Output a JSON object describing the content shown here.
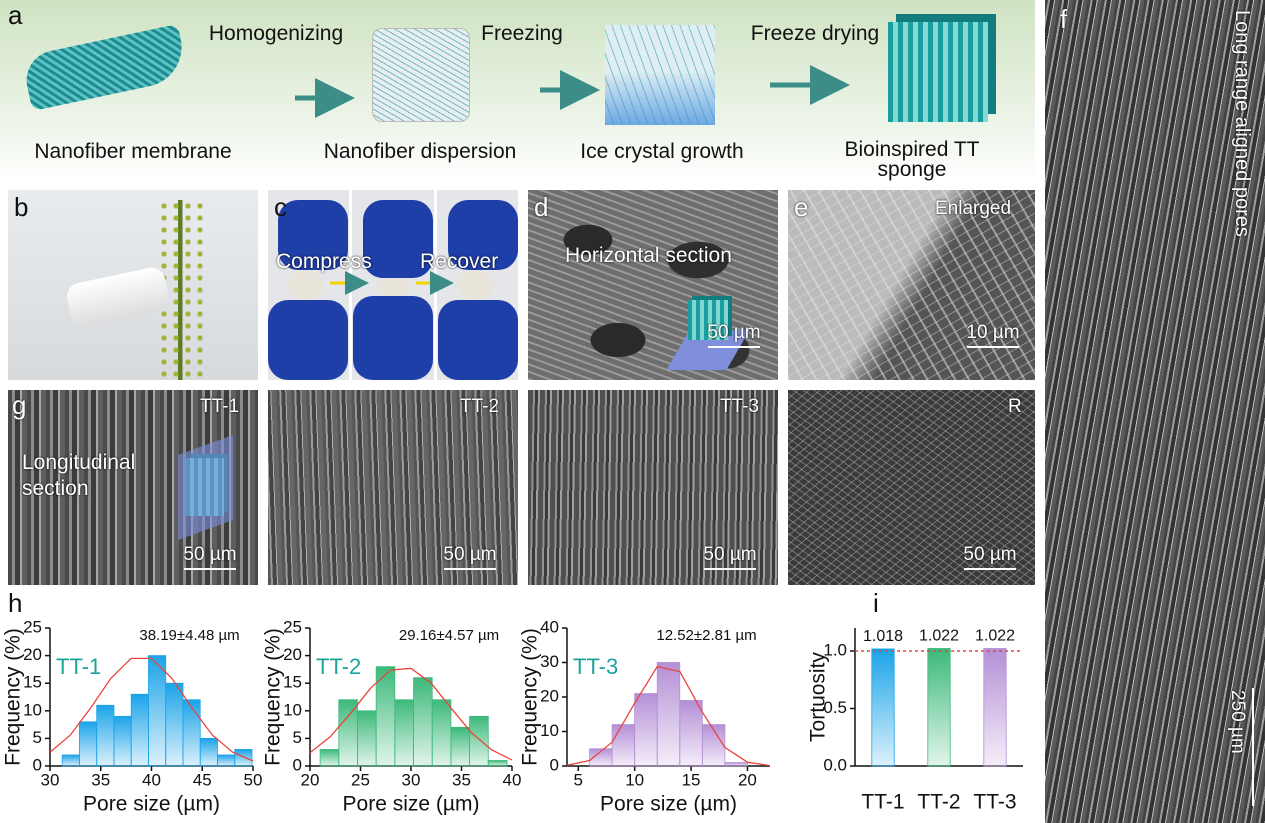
{
  "a": {
    "label": "a",
    "steps": [
      "Homogenizing",
      "Freezing",
      "Freeze drying"
    ],
    "stages": [
      "Nanofiber membrane",
      "Nanofiber dispersion",
      "Ice crystal growth",
      "Bioinspired TT sponge"
    ]
  },
  "b": {
    "label": "b"
  },
  "c": {
    "label": "c",
    "texts": [
      "Compress",
      "Recover"
    ]
  },
  "d": {
    "label": "d",
    "title": "Horizontal section",
    "scale": "50 µm"
  },
  "e": {
    "label": "e",
    "title": "Enlarged",
    "scale": "10 µm"
  },
  "f": {
    "label": "f",
    "title": "Long range aligned pores",
    "scale": "250 µm"
  },
  "g": {
    "label": "g",
    "note": "Longitudinal section",
    "panels": [
      {
        "title": "TT-1",
        "scale": "50 µm"
      },
      {
        "title": "TT-2",
        "scale": "50 µm"
      },
      {
        "title": "TT-3",
        "scale": "50 µm"
      },
      {
        "title": "R",
        "scale": "50 µm"
      }
    ]
  },
  "h": {
    "label": "h"
  },
  "i": {
    "label": "i"
  },
  "chart_data": [
    {
      "type": "histogram",
      "name": "TT-1",
      "annotation": "38.19±4.48 µm",
      "xlabel": "Pore size (µm)",
      "ylabel": "Frequency (%)",
      "bins": [
        31.2,
        32.9,
        34.6,
        36.3,
        38.0,
        39.7,
        41.4,
        43.1,
        44.8,
        46.5,
        48.2,
        49.9
      ],
      "values": [
        2,
        8,
        11,
        9,
        13,
        20,
        15,
        12,
        5,
        2,
        3
      ],
      "xlim": [
        30,
        50
      ],
      "xticks": [
        30,
        35,
        40,
        45,
        50
      ],
      "ylim": [
        0,
        25
      ],
      "yticks": [
        0,
        5,
        10,
        15,
        20,
        25
      ],
      "color": "#1aa3e8",
      "fit": {
        "color": "#e8453c",
        "x": [
          30,
          32,
          34,
          36,
          38,
          40,
          42,
          44,
          46,
          48,
          50
        ],
        "y": [
          2.5,
          5.6,
          10.5,
          15.9,
          19.5,
          19.5,
          15.9,
          10.5,
          5.6,
          2.5,
          0.9
        ]
      }
    },
    {
      "type": "histogram",
      "name": "TT-2",
      "annotation": "29.16±4.57 µm",
      "xlabel": "Pore size (µm)",
      "ylabel": "Frequency (%)",
      "bins": [
        21.0,
        22.85,
        24.7,
        26.55,
        28.4,
        30.25,
        32.1,
        33.95,
        35.8,
        37.65,
        39.5
      ],
      "values": [
        3,
        12,
        10,
        18,
        12,
        16,
        12,
        7,
        9,
        1
      ],
      "xlim": [
        20,
        40
      ],
      "xticks": [
        20,
        25,
        30,
        35,
        40
      ],
      "ylim": [
        0,
        25
      ],
      "yticks": [
        0,
        5,
        10,
        15,
        20,
        25
      ],
      "color": "#3cb97a",
      "fit": {
        "color": "#e8453c",
        "x": [
          20,
          22,
          24,
          26,
          28,
          30,
          32,
          34,
          36,
          38,
          40
        ],
        "y": [
          2.4,
          5.3,
          9.5,
          14.1,
          17.4,
          17.7,
          15,
          10.4,
          6,
          2.9,
          1.1
        ]
      }
    },
    {
      "type": "histogram",
      "name": "TT-3",
      "annotation": "12.52±2.81 µm",
      "xlabel": "Pore size (µm)",
      "ylabel": "Frequency (%)",
      "bins": [
        6,
        8,
        10,
        12,
        14,
        16,
        18,
        20
      ],
      "values": [
        5,
        12,
        21,
        30,
        19,
        12,
        1
      ],
      "xlim": [
        4,
        22
      ],
      "xticks": [
        5,
        10,
        15,
        20
      ],
      "ylim": [
        0,
        40
      ],
      "yticks": [
        0,
        10,
        20,
        30,
        40
      ],
      "color": "#b48fd6",
      "fit": {
        "color": "#e8453c",
        "x": [
          4,
          6,
          8,
          10,
          12,
          14,
          16,
          18,
          20,
          22
        ],
        "y": [
          0.2,
          1.6,
          6.9,
          18.2,
          28.8,
          27.4,
          15.6,
          5.4,
          1.1,
          0.1
        ]
      }
    },
    {
      "type": "bar",
      "ylabel": "Tortuosity",
      "categories": [
        "TT-1",
        "TT-2",
        "TT-3"
      ],
      "values": [
        1.018,
        1.022,
        1.022
      ],
      "colors": [
        "#1aa3e8",
        "#3cb97a",
        "#b48fd6"
      ],
      "ylim": [
        0,
        1.2
      ],
      "yticks": [
        {
          "value": 0,
          "label": "0.0"
        },
        {
          "value": 0.5,
          "label": "0.5"
        },
        {
          "value": 1,
          "label": "1.0"
        }
      ],
      "hline": 1,
      "hline_color": "#e8453c"
    }
  ]
}
